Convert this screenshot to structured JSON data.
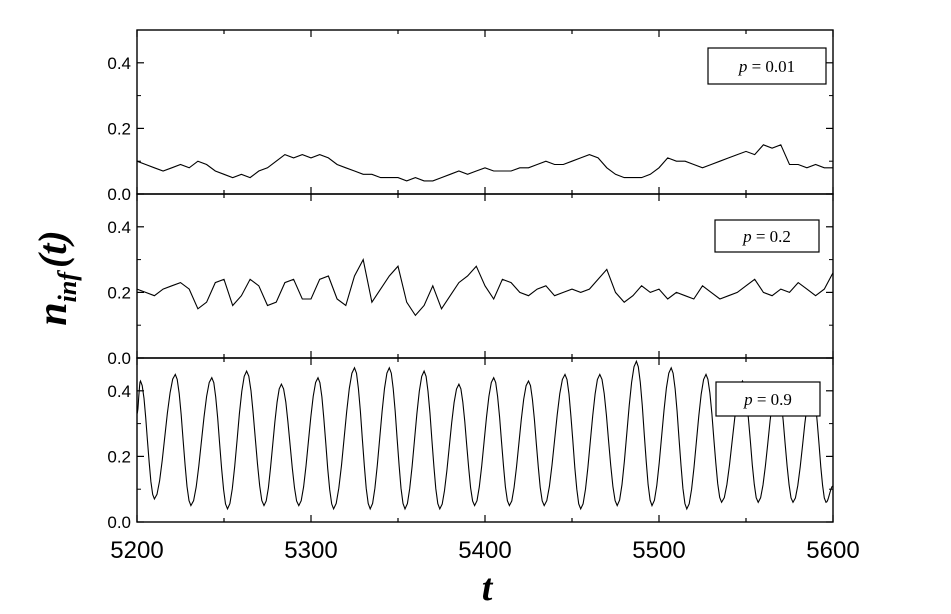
{
  "chart_data": {
    "type": "line",
    "x_range": [
      5200,
      5600
    ],
    "x_ticks": [
      5200,
      5300,
      5400,
      5500,
      5600
    ],
    "x_tick_labels": [
      "5200",
      "5300",
      "5400",
      "5500",
      "5600"
    ],
    "xlabel": "t",
    "ylabel": {
      "main": "n",
      "sub": "inf",
      "arg": "(t)"
    },
    "grid": false,
    "panels": [
      {
        "legend": {
          "var": "p",
          "rest": " = 0.01"
        },
        "ylim": [
          0,
          0.5
        ],
        "y_ticks": [
          0,
          0.2,
          0.4
        ],
        "y_tick_labels": [
          "0.0",
          "0.2",
          "0.4"
        ],
        "series": [
          {
            "x": [
              5200,
              5205,
              5210,
              5215,
              5220,
              5225,
              5230,
              5235,
              5240,
              5245,
              5250,
              5255,
              5260,
              5265,
              5270,
              5275,
              5280,
              5285,
              5290,
              5295,
              5300,
              5305,
              5310,
              5315,
              5320,
              5325,
              5330,
              5335,
              5340,
              5345,
              5350,
              5355,
              5360,
              5365,
              5370,
              5375,
              5380,
              5385,
              5390,
              5395,
              5400,
              5405,
              5410,
              5415,
              5420,
              5425,
              5430,
              5435,
              5440,
              5445,
              5450,
              5455,
              5460,
              5465,
              5470,
              5475,
              5480,
              5485,
              5490,
              5495,
              5500,
              5505,
              5510,
              5515,
              5520,
              5525,
              5530,
              5535,
              5540,
              5545,
              5550,
              5555,
              5560,
              5565,
              5570,
              5575,
              5580,
              5585,
              5590,
              5595,
              5600
            ],
            "y": [
              0.1,
              0.09,
              0.08,
              0.07,
              0.08,
              0.09,
              0.08,
              0.1,
              0.09,
              0.07,
              0.06,
              0.05,
              0.06,
              0.05,
              0.07,
              0.08,
              0.1,
              0.12,
              0.11,
              0.12,
              0.11,
              0.12,
              0.11,
              0.09,
              0.08,
              0.07,
              0.06,
              0.06,
              0.05,
              0.05,
              0.05,
              0.04,
              0.05,
              0.04,
              0.04,
              0.05,
              0.06,
              0.07,
              0.06,
              0.07,
              0.08,
              0.07,
              0.07,
              0.07,
              0.08,
              0.08,
              0.09,
              0.1,
              0.09,
              0.09,
              0.1,
              0.11,
              0.12,
              0.11,
              0.08,
              0.06,
              0.05,
              0.05,
              0.05,
              0.06,
              0.08,
              0.11,
              0.1,
              0.1,
              0.09,
              0.08,
              0.09,
              0.1,
              0.11,
              0.12,
              0.13,
              0.12,
              0.15,
              0.14,
              0.15,
              0.09,
              0.09,
              0.08,
              0.09,
              0.08,
              0.08
            ]
          }
        ]
      },
      {
        "legend": {
          "var": "p",
          "rest": " = 0.2"
        },
        "ylim": [
          0,
          0.5
        ],
        "y_ticks": [
          0,
          0.2,
          0.4
        ],
        "y_tick_labels": [
          "0.0",
          "0.2",
          "0.4"
        ],
        "series": [
          {
            "x": [
              5200,
              5205,
              5210,
              5215,
              5220,
              5225,
              5230,
              5235,
              5240,
              5245,
              5250,
              5255,
              5260,
              5265,
              5270,
              5275,
              5280,
              5285,
              5290,
              5295,
              5300,
              5305,
              5310,
              5315,
              5320,
              5325,
              5330,
              5335,
              5340,
              5345,
              5350,
              5355,
              5360,
              5365,
              5370,
              5375,
              5380,
              5385,
              5390,
              5395,
              5400,
              5405,
              5410,
              5415,
              5420,
              5425,
              5430,
              5435,
              5440,
              5445,
              5450,
              5455,
              5460,
              5465,
              5470,
              5475,
              5480,
              5485,
              5490,
              5495,
              5500,
              5505,
              5510,
              5515,
              5520,
              5525,
              5530,
              5535,
              5540,
              5545,
              5550,
              5555,
              5560,
              5565,
              5570,
              5575,
              5580,
              5585,
              5590,
              5595,
              5600
            ],
            "y": [
              0.21,
              0.2,
              0.19,
              0.21,
              0.22,
              0.23,
              0.21,
              0.15,
              0.17,
              0.23,
              0.24,
              0.16,
              0.19,
              0.24,
              0.22,
              0.16,
              0.17,
              0.23,
              0.24,
              0.18,
              0.18,
              0.24,
              0.25,
              0.18,
              0.16,
              0.25,
              0.3,
              0.17,
              0.21,
              0.25,
              0.28,
              0.17,
              0.13,
              0.16,
              0.22,
              0.15,
              0.19,
              0.23,
              0.25,
              0.28,
              0.22,
              0.18,
              0.24,
              0.23,
              0.2,
              0.19,
              0.21,
              0.22,
              0.19,
              0.2,
              0.21,
              0.2,
              0.21,
              0.24,
              0.27,
              0.2,
              0.17,
              0.19,
              0.22,
              0.2,
              0.21,
              0.18,
              0.2,
              0.19,
              0.18,
              0.22,
              0.2,
              0.18,
              0.19,
              0.2,
              0.22,
              0.24,
              0.2,
              0.19,
              0.21,
              0.2,
              0.23,
              0.21,
              0.19,
              0.21,
              0.26
            ]
          }
        ]
      },
      {
        "legend": {
          "var": "p",
          "rest": " = 0.9"
        },
        "ylim": [
          0,
          0.5
        ],
        "y_ticks": [
          0,
          0.2,
          0.4
        ],
        "y_tick_labels": [
          "0.0",
          "0.2",
          "0.4"
        ],
        "series": [
          {
            "peaks": [
              {
                "x": 5202,
                "y": 0.43
              },
              {
                "x": 5222,
                "y": 0.45
              },
              {
                "x": 5243,
                "y": 0.44
              },
              {
                "x": 5263,
                "y": 0.46
              },
              {
                "x": 5283,
                "y": 0.42
              },
              {
                "x": 5304,
                "y": 0.44
              },
              {
                "x": 5325,
                "y": 0.47
              },
              {
                "x": 5345,
                "y": 0.47
              },
              {
                "x": 5365,
                "y": 0.46
              },
              {
                "x": 5385,
                "y": 0.42
              },
              {
                "x": 5405,
                "y": 0.44
              },
              {
                "x": 5425,
                "y": 0.43
              },
              {
                "x": 5446,
                "y": 0.45
              },
              {
                "x": 5466,
                "y": 0.45
              },
              {
                "x": 5487,
                "y": 0.49
              },
              {
                "x": 5507,
                "y": 0.47
              },
              {
                "x": 5527,
                "y": 0.45
              },
              {
                "x": 5548,
                "y": 0.43
              },
              {
                "x": 5568,
                "y": 0.42
              },
              {
                "x": 5588,
                "y": 0.41
              }
            ],
            "troughs": [
              {
                "x": 5210,
                "y": 0.07
              },
              {
                "x": 5231,
                "y": 0.05
              },
              {
                "x": 5252,
                "y": 0.04
              },
              {
                "x": 5273,
                "y": 0.05
              },
              {
                "x": 5293,
                "y": 0.05
              },
              {
                "x": 5313,
                "y": 0.04
              },
              {
                "x": 5334,
                "y": 0.04
              },
              {
                "x": 5354,
                "y": 0.04
              },
              {
                "x": 5374,
                "y": 0.04
              },
              {
                "x": 5394,
                "y": 0.05
              },
              {
                "x": 5414,
                "y": 0.05
              },
              {
                "x": 5434,
                "y": 0.05
              },
              {
                "x": 5455,
                "y": 0.04
              },
              {
                "x": 5476,
                "y": 0.05
              },
              {
                "x": 5496,
                "y": 0.05
              },
              {
                "x": 5516,
                "y": 0.04
              },
              {
                "x": 5536,
                "y": 0.06
              },
              {
                "x": 5557,
                "y": 0.06
              },
              {
                "x": 5577,
                "y": 0.06
              },
              {
                "x": 5596,
                "y": 0.06
              }
            ],
            "start": {
              "x": 5200,
              "y": 0.33
            },
            "end": {
              "x": 5600,
              "y": 0.11
            }
          }
        ]
      }
    ]
  }
}
